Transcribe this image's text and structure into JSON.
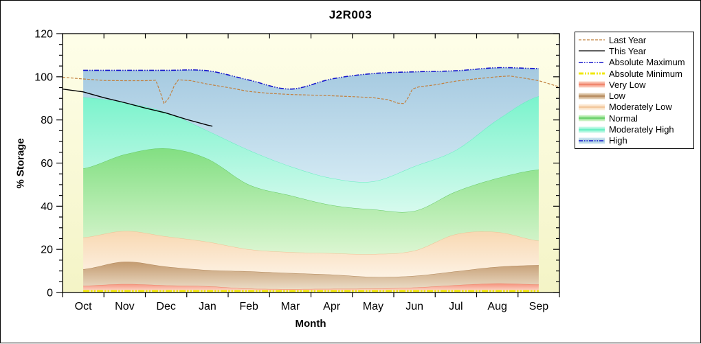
{
  "chart_data": {
    "type": "area",
    "title": "J2R003",
    "xlabel": "Month",
    "ylabel": "% Storage",
    "ylim": [
      0,
      120
    ],
    "y_major_tick_step": 20,
    "y_minor_tick_step": 5,
    "categories": [
      "Oct",
      "Nov",
      "Dec",
      "Jan",
      "Feb",
      "Mar",
      "Apr",
      "May",
      "Jun",
      "Jul",
      "Aug",
      "Sep"
    ],
    "plot_bg_top": "#FEFEE9",
    "plot_bg_bottom": "#F4F4C6",
    "boundary_series": {
      "abs_min": [
        0.7,
        0.7,
        0.7,
        0.7,
        0.7,
        0.7,
        0.7,
        0.7,
        0.7,
        0.7,
        0.7,
        0.7
      ],
      "very_low_top": [
        3.1,
        3.9,
        3.3,
        2.9,
        1.8,
        1.6,
        1.7,
        1.8,
        2.3,
        3.4,
        4.2,
        3.7
      ],
      "low_top": [
        10.8,
        14.3,
        12.0,
        10.4,
        9.8,
        9.0,
        8.3,
        7.2,
        7.7,
        9.8,
        11.9,
        12.7
      ],
      "mod_low_top": [
        25.5,
        28.5,
        26.0,
        23.5,
        20.0,
        18.7,
        18.2,
        17.8,
        19.4,
        27.0,
        28.0,
        24.0
      ],
      "normal_top": [
        57.5,
        64.0,
        66.8,
        62.0,
        50.0,
        45.0,
        40.5,
        38.5,
        37.8,
        46.8,
        53.0,
        57.0
      ],
      "mod_high_top": [
        90.5,
        88.0,
        83.5,
        75.0,
        66.0,
        58.5,
        53.0,
        51.5,
        58.5,
        66.0,
        80.0,
        91.0
      ],
      "abs_max": [
        103.0,
        103.0,
        103.0,
        102.8,
        98.5,
        94.3,
        99.0,
        101.5,
        102.3,
        102.8,
        104.2,
        103.8
      ]
    },
    "bands": [
      {
        "key": "very-low",
        "label": "Very Low",
        "lower": "abs_min",
        "upper": "very_low_top",
        "color_top": "#F5907A",
        "color_bottom": "#FCD8CA",
        "edge": "#EE8066"
      },
      {
        "key": "low",
        "label": "Low",
        "lower": "very_low_top",
        "upper": "low_top",
        "color_top": "#C39A6F",
        "color_bottom": "#EBDCC6",
        "edge": "#B1875A"
      },
      {
        "key": "moderately-low",
        "label": "Moderately Low",
        "lower": "low_top",
        "upper": "mod_low_top",
        "color_top": "#F8D8B2",
        "color_bottom": "#FDF2E4",
        "edge": "#EFC093"
      },
      {
        "key": "normal",
        "label": "Normal",
        "lower": "mod_low_top",
        "upper": "normal_top",
        "color_top": "#82DF82",
        "color_bottom": "#DCF6D2",
        "edge": "#63C963"
      },
      {
        "key": "moderately-high",
        "label": "Moderately High",
        "lower": "normal_top",
        "upper": "mod_high_top",
        "color_top": "#7AF3CC",
        "color_bottom": "#D7FAEE",
        "edge": "#62EDBF"
      },
      {
        "key": "high",
        "label": "High",
        "lower": "mod_high_top",
        "upper": "abs_max",
        "color_top": "#A5C9E0",
        "color_bottom": "#D2E9F3",
        "edge": ""
      }
    ],
    "edge_lines": {
      "absolute_maximum": {
        "series": "abs_max",
        "color": "#1717CC",
        "width": 1.6,
        "dash": "7,2,1.5,2,1.5,2"
      },
      "absolute_minimum": {
        "series": "abs_min",
        "color": "#F0E70A",
        "width": 3,
        "dash": "9,2,2.5,2,2.5,2"
      }
    },
    "overlay_lines": [
      {
        "name": "Last Year",
        "color": "#C1803F",
        "width": 1.2,
        "dash": "4,2",
        "points": [
          [
            -0.5,
            99.8
          ],
          [
            0,
            99
          ],
          [
            0.5,
            98.3
          ],
          [
            1,
            98.2
          ],
          [
            1.5,
            98.2
          ],
          [
            1.75,
            98.4
          ],
          [
            1.85,
            93.5
          ],
          [
            1.95,
            87.5
          ],
          [
            2.08,
            90.5
          ],
          [
            2.2,
            96
          ],
          [
            2.3,
            98.6
          ],
          [
            2.6,
            98.2
          ],
          [
            3,
            96.6
          ],
          [
            3.5,
            95
          ],
          [
            4,
            93.2
          ],
          [
            4.5,
            92.3
          ],
          [
            5,
            91.8
          ],
          [
            5.5,
            91.5
          ],
          [
            6,
            91.2
          ],
          [
            6.5,
            90.8
          ],
          [
            7,
            90.3
          ],
          [
            7.35,
            89.4
          ],
          [
            7.6,
            87.8
          ],
          [
            7.75,
            87.6
          ],
          [
            7.85,
            90.5
          ],
          [
            7.95,
            94.3
          ],
          [
            8.1,
            95.3
          ],
          [
            8.5,
            96.3
          ],
          [
            9,
            98
          ],
          [
            9.5,
            99.1
          ],
          [
            10,
            100
          ],
          [
            10.3,
            100.4
          ],
          [
            10.7,
            99.2
          ],
          [
            11,
            98.2
          ],
          [
            11.5,
            95.3
          ]
        ]
      },
      {
        "name": "This Year",
        "color": "#000000",
        "width": 1.4,
        "dash": "",
        "points": [
          [
            -0.5,
            94.3
          ],
          [
            0,
            93
          ],
          [
            0.5,
            90.3
          ],
          [
            1,
            88
          ],
          [
            1.5,
            85.5
          ],
          [
            2,
            83.2
          ],
          [
            2.5,
            80.2
          ],
          [
            3,
            77.6
          ],
          [
            3.12,
            77.1
          ]
        ]
      }
    ]
  },
  "legend": {
    "items": [
      {
        "label": "Last Year",
        "type": "line",
        "color": "#C1803F",
        "width": 1.2,
        "dash": "4,2"
      },
      {
        "label": "This Year",
        "type": "line",
        "color": "#000000",
        "width": 1.3,
        "dash": ""
      },
      {
        "label": "Absolute Maximum",
        "type": "line",
        "color": "#1717CC",
        "width": 1.6,
        "dash": "6,2,1.5,2,1.5,2"
      },
      {
        "label": "Absolute Minimum",
        "type": "line",
        "color": "#F0E70A",
        "width": 3,
        "dash": "7,2,2,2,2,2"
      },
      {
        "label": "Very Low",
        "type": "band",
        "color_top": "#F5907A",
        "color_bottom": "#FCD8CA",
        "edge": "#EE8066"
      },
      {
        "label": "Low",
        "type": "band",
        "color_top": "#C39A6F",
        "color_bottom": "#EBDCC6",
        "edge": "#B1875A"
      },
      {
        "label": "Moderately Low",
        "type": "band",
        "color_top": "#F8D8B2",
        "color_bottom": "#FDF2E4",
        "edge": "#EFC093"
      },
      {
        "label": "Normal",
        "type": "band",
        "color_top": "#82DF82",
        "color_bottom": "#DCF6D2",
        "edge": "#63C963"
      },
      {
        "label": "Moderately High",
        "type": "band",
        "color_top": "#7AF3CC",
        "color_bottom": "#D7FAEE",
        "edge": "#62EDBF"
      },
      {
        "label": "High",
        "type": "band_line",
        "color_top": "#A5C9E0",
        "color_bottom": "#D2E9F3",
        "color": "#1717CC",
        "width": 1.4,
        "dash": "6,2,1.5,2,1.5,2"
      }
    ]
  }
}
